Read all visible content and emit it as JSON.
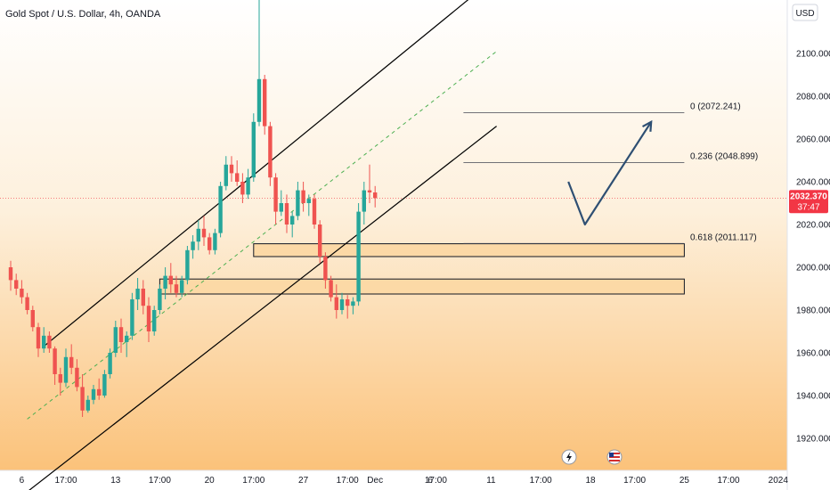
{
  "header": {
    "title": "Gold Spot / U.S. Dollar, 4h, OANDA",
    "currency_button": "USD"
  },
  "price_badge": {
    "price": "2032.370",
    "countdown": "37:47",
    "color": "#f23645"
  },
  "colors": {
    "bull": "#26a69a",
    "bear": "#ef5350",
    "zone_fill": "#fcd9a6",
    "zone_stroke": "#131722",
    "projection": "#2e4f73",
    "channel": "#000000",
    "midline": "#4caf50"
  },
  "chart_data": {
    "type": "candlestick",
    "symbol": "Gold Spot / U.S. Dollar",
    "interval": "4h",
    "source": "OANDA",
    "ylim": [
      1905,
      2125
    ],
    "y_ticks": [
      1920,
      1940,
      1960,
      1980,
      2000,
      2020,
      2040,
      2060,
      2080,
      2100
    ],
    "y_tick_labels": [
      "1920.000",
      "1940.000",
      "1960.000",
      "1980.000",
      "2000.000",
      "2020.000",
      "2040.000",
      "2060.000",
      "2080.000",
      "2100.000"
    ],
    "x_ticks": [
      {
        "label": "6",
        "i": 2
      },
      {
        "label": "17:00",
        "i": 10
      },
      {
        "label": "13",
        "i": 19
      },
      {
        "label": "17:00",
        "i": 27
      },
      {
        "label": "20",
        "i": 36
      },
      {
        "label": "17:00",
        "i": 44
      },
      {
        "label": "27",
        "i": 53
      },
      {
        "label": "17:00",
        "i": 61
      },
      {
        "label": "Dec",
        "i": 66
      },
      {
        "label": "6",
        "i": 76
      },
      {
        "label": "17:00",
        "i": 77
      },
      {
        "label": "11",
        "i": 87
      },
      {
        "label": "17:00",
        "i": 96
      },
      {
        "label": "18",
        "i": 105
      },
      {
        "label": "17:00",
        "i": 113
      },
      {
        "label": "25",
        "i": 122
      },
      {
        "label": "17:00",
        "i": 130
      },
      {
        "label": "2024",
        "i": 139
      }
    ],
    "candles": [
      [
        2000.0,
        2003.0,
        1989.0,
        1994.0
      ],
      [
        1994.0,
        1997.0,
        1987.0,
        1990.0
      ],
      [
        1990.0,
        1994.0,
        1983.0,
        1986.0
      ],
      [
        1986.0,
        1988.0,
        1978.0,
        1980.0
      ],
      [
        1980.0,
        1982.0,
        1970.0,
        1972.0
      ],
      [
        1972.0,
        1974.0,
        1958.0,
        1962.0
      ],
      [
        1962.0,
        1972.0,
        1960.0,
        1968.0
      ],
      [
        1968.0,
        1970.0,
        1960.0,
        1962.0
      ],
      [
        1962.0,
        1963.0,
        1945.0,
        1950.0
      ],
      [
        1950.0,
        1953.0,
        1940.0,
        1946.0
      ],
      [
        1946.0,
        1962.0,
        1944.0,
        1958.0
      ],
      [
        1958.0,
        1964.0,
        1950.0,
        1953.0
      ],
      [
        1953.0,
        1957.0,
        1942.0,
        1944.0
      ],
      [
        1944.0,
        1950.0,
        1930.0,
        1933.0
      ],
      [
        1933.0,
        1940.0,
        1932.0,
        1938.0
      ],
      [
        1938.0,
        1945.0,
        1936.0,
        1943.0
      ],
      [
        1943.0,
        1948.0,
        1938.0,
        1940.0
      ],
      [
        1940.0,
        1952.0,
        1939.0,
        1950.0
      ],
      [
        1950.0,
        1962.0,
        1948.0,
        1960.0
      ],
      [
        1960.0,
        1975.0,
        1958.0,
        1972.0
      ],
      [
        1972.0,
        1976.0,
        1960.0,
        1965.0
      ],
      [
        1965.0,
        1970.0,
        1958.0,
        1968.0
      ],
      [
        1968.0,
        1988.0,
        1966.0,
        1985.0
      ],
      [
        1985.0,
        1995.0,
        1980.0,
        1990.0
      ],
      [
        1990.0,
        1994.0,
        1978.0,
        1982.0
      ],
      [
        1982.0,
        1986.0,
        1965.0,
        1970.0
      ],
      [
        1970.0,
        1982.0,
        1968.0,
        1980.0
      ],
      [
        1980.0,
        1992.0,
        1978.0,
        1990.0
      ],
      [
        1990.0,
        2000.0,
        1985.0,
        1996.0
      ],
      [
        1996.0,
        2002.0,
        1988.0,
        1992.0
      ],
      [
        1992.0,
        1996.0,
        1986.0,
        1988.0
      ],
      [
        1988.0,
        1996.0,
        1986.0,
        1994.0
      ],
      [
        1994.0,
        2010.0,
        1992.0,
        2008.0
      ],
      [
        2008.0,
        2015.0,
        2004.0,
        2012.0
      ],
      [
        2012.0,
        2022.0,
        2008.0,
        2018.0
      ],
      [
        2018.0,
        2024.0,
        2010.0,
        2014.0
      ],
      [
        2014.0,
        2016.0,
        2006.0,
        2008.0
      ],
      [
        2008.0,
        2018.0,
        2006.0,
        2016.0
      ],
      [
        2016.0,
        2040.0,
        2014.0,
        2038.0
      ],
      [
        2038.0,
        2052.0,
        2036.0,
        2048.0
      ],
      [
        2048.0,
        2052.0,
        2040.0,
        2044.0
      ],
      [
        2044.0,
        2050.0,
        2038.0,
        2040.0
      ],
      [
        2040.0,
        2044.0,
        2030.0,
        2034.0
      ],
      [
        2034.0,
        2046.0,
        2032.0,
        2042.0
      ],
      [
        2042.0,
        2072.0,
        2040.0,
        2068.0
      ],
      [
        2068.0,
        2135.0,
        2066.0,
        2088.0
      ],
      [
        2088.0,
        2090.0,
        2062.0,
        2066.0
      ],
      [
        2066.0,
        2068.0,
        2038.0,
        2042.0
      ],
      [
        2042.0,
        2044.0,
        2020.0,
        2026.0
      ],
      [
        2026.0,
        2036.0,
        2024.0,
        2030.0
      ],
      [
        2030.0,
        2034.0,
        2016.0,
        2020.0
      ],
      [
        2020.0,
        2026.0,
        2014.0,
        2024.0
      ],
      [
        2024.0,
        2040.0,
        2022.0,
        2036.0
      ],
      [
        2036.0,
        2040.0,
        2026.0,
        2030.0
      ],
      [
        2030.0,
        2034.0,
        2024.0,
        2032.0
      ],
      [
        2032.0,
        2034.0,
        2018.0,
        2020.0
      ],
      [
        2020.0,
        2022.0,
        2002.0,
        2005.0
      ],
      [
        2005.0,
        2007.0,
        1990.0,
        1994.0
      ],
      [
        1994.0,
        1996.0,
        1984.0,
        1986.0
      ],
      [
        1986.0,
        1992.0,
        1976.0,
        1980.0
      ],
      [
        1980.0,
        1988.0,
        1978.0,
        1985.0
      ],
      [
        1985.0,
        1987.0,
        1976.0,
        1982.0
      ],
      [
        1982.0,
        1986.0,
        1978.0,
        1984.0
      ],
      [
        1984.0,
        2030.0,
        1982.0,
        2026.0
      ],
      [
        2026.0,
        2040.0,
        2020.0,
        2036.0
      ],
      [
        2036.0,
        2048.0,
        2030.0,
        2035.0
      ],
      [
        2035.0,
        2038.0,
        2028.0,
        2032.37
      ]
    ],
    "fib_levels": [
      {
        "label": "0 (2072.241)",
        "value": 2072.241
      },
      {
        "label": "0.236 (2048.899)",
        "value": 2048.899
      },
      {
        "label": "0.618 (2011.117)",
        "value": 2011.117
      }
    ],
    "zones": [
      {
        "top": 2011.0,
        "bottom": 2005.0,
        "from": 44,
        "to": 122
      },
      {
        "top": 1994.5,
        "bottom": 1987.5,
        "from": 27,
        "to": 122
      }
    ],
    "channel_upper": [
      [
        6,
        1963.0
      ],
      [
        88,
        2136.0
      ]
    ],
    "channel_lower": [
      [
        3,
        1895.0
      ],
      [
        88,
        2066.0
      ]
    ],
    "channel_mid": [
      [
        3,
        1929.0
      ],
      [
        88,
        2101.0
      ]
    ],
    "fib_from_index": 82,
    "projection": [
      [
        101,
        2040.0
      ],
      [
        104,
        2020.0
      ],
      [
        116,
        2068.0
      ]
    ],
    "last_price": 2032.37
  }
}
